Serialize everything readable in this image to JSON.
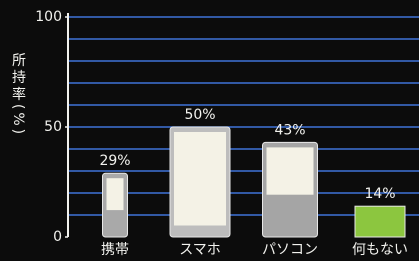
{
  "chart_data": {
    "type": "bar",
    "y_axis_label": "所持率(%)",
    "categories": [
      "携帯",
      "スマホ",
      "パソコン",
      "何もない"
    ],
    "values": [
      29,
      50,
      43,
      14
    ],
    "value_labels": [
      "29%",
      "50%",
      "43%",
      "14%"
    ],
    "colors": [
      "#a9a9a9",
      "#bdbdbd",
      "#a5a5a5",
      "#8cc63f"
    ],
    "ylim": [
      0,
      100
    ],
    "yticks": [
      0,
      50,
      100
    ],
    "gridlines": [
      10,
      20,
      30,
      40,
      50,
      60,
      70,
      80,
      90,
      100
    ],
    "grid_color": "#3f73d8"
  }
}
